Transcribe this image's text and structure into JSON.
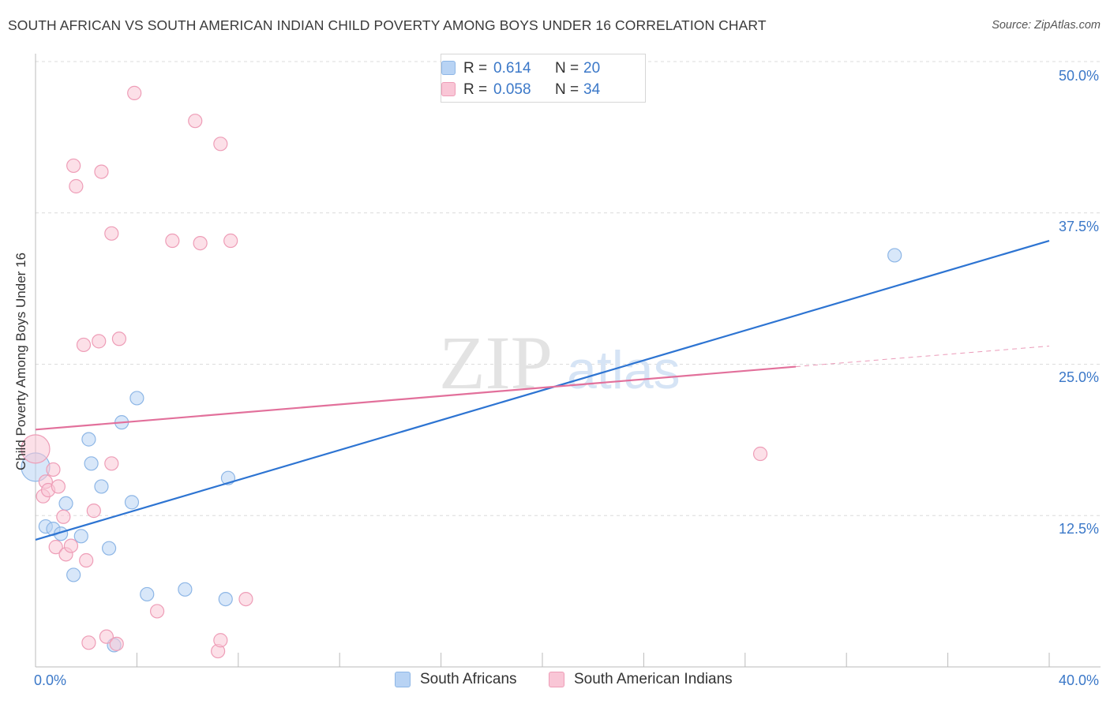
{
  "title": "SOUTH AFRICAN VS SOUTH AMERICAN INDIAN CHILD POVERTY AMONG BOYS UNDER 16 CORRELATION CHART",
  "source": "Source: ZipAtlas.com",
  "watermark": {
    "zip": "ZIP",
    "atlas": "atlas"
  },
  "legend_top": {
    "rows": [
      {
        "r_label": "R =",
        "r_value": "0.614",
        "n_label": "N =",
        "n_value": "20"
      },
      {
        "r_label": "R =",
        "r_value": "0.058",
        "n_label": "N =",
        "n_value": "34"
      }
    ]
  },
  "legend_bottom": [
    "South Africans",
    "South American Indians"
  ],
  "colors": {
    "blue_fill": "#b8d3f4",
    "blue_stroke": "#8db6e6",
    "blue_line": "#2d74d2",
    "pink_fill": "#f9c6d6",
    "pink_stroke": "#ee9db7",
    "pink_line": "#e2709b",
    "tick_text": "#3b78c8",
    "grid": "#dcdcdc"
  },
  "chart_data": {
    "type": "scatter",
    "title": "SOUTH AFRICAN VS SOUTH AMERICAN INDIAN CHILD POVERTY AMONG BOYS UNDER 16 CORRELATION CHART",
    "xlabel": "",
    "ylabel": "Child Poverty Among Boys Under 16",
    "xlim": [
      0,
      40
    ],
    "ylim": [
      0,
      50
    ],
    "x_tick_labels": [
      "0.0%",
      "40.0%"
    ],
    "y_ticks": [
      12.5,
      25.0,
      37.5,
      50.0
    ],
    "y_tick_labels": [
      "12.5%",
      "25.0%",
      "37.5%",
      "50.0%"
    ],
    "grid": "horizontal dashed",
    "legend_position": "top-center",
    "series": [
      {
        "name": "South Africans",
        "R": 0.614,
        "N": 20,
        "points": [
          [
            0.0,
            16.5,
            "large"
          ],
          [
            0.4,
            11.6
          ],
          [
            0.7,
            11.4
          ],
          [
            1.0,
            11.0
          ],
          [
            1.2,
            13.5
          ],
          [
            1.5,
            7.6
          ],
          [
            1.8,
            10.8
          ],
          [
            2.1,
            18.8
          ],
          [
            2.2,
            16.8
          ],
          [
            2.6,
            14.9
          ],
          [
            2.9,
            9.8
          ],
          [
            3.1,
            1.8
          ],
          [
            3.4,
            20.2
          ],
          [
            3.8,
            13.6
          ],
          [
            4.0,
            22.2
          ],
          [
            4.4,
            6.0
          ],
          [
            5.9,
            6.4
          ],
          [
            7.5,
            5.6
          ],
          [
            7.6,
            15.6
          ],
          [
            33.9,
            34.0
          ]
        ],
        "trend": {
          "x": [
            0,
            40
          ],
          "y": [
            10.5,
            35.2
          ]
        }
      },
      {
        "name": "South American Indians",
        "R": 0.058,
        "N": 34,
        "points": [
          [
            0.0,
            18.0,
            "large"
          ],
          [
            0.3,
            14.1
          ],
          [
            0.4,
            15.3
          ],
          [
            0.5,
            14.6
          ],
          [
            0.7,
            16.3
          ],
          [
            0.8,
            9.9
          ],
          [
            0.9,
            14.9
          ],
          [
            1.1,
            12.4
          ],
          [
            1.2,
            9.3
          ],
          [
            1.4,
            10.0
          ],
          [
            1.5,
            41.4
          ],
          [
            1.6,
            39.7
          ],
          [
            1.9,
            26.6
          ],
          [
            2.0,
            8.8
          ],
          [
            2.1,
            2.0
          ],
          [
            2.3,
            12.9
          ],
          [
            2.5,
            26.9
          ],
          [
            2.6,
            40.9
          ],
          [
            2.8,
            2.5
          ],
          [
            3.0,
            35.8
          ],
          [
            3.0,
            16.8
          ],
          [
            3.2,
            1.9
          ],
          [
            3.3,
            27.1
          ],
          [
            3.9,
            47.4
          ],
          [
            4.8,
            4.6
          ],
          [
            5.4,
            35.2
          ],
          [
            6.3,
            45.1
          ],
          [
            6.5,
            35.0
          ],
          [
            7.2,
            1.3
          ],
          [
            7.3,
            2.2
          ],
          [
            7.3,
            43.2
          ],
          [
            7.7,
            35.2
          ],
          [
            8.3,
            5.6
          ],
          [
            28.6,
            17.6
          ]
        ],
        "trend": {
          "x": [
            0,
            30
          ],
          "y": [
            19.6,
            24.8
          ]
        },
        "trend_dashed": {
          "x": [
            30,
            40
          ],
          "y": [
            24.8,
            26.5
          ]
        }
      }
    ]
  }
}
